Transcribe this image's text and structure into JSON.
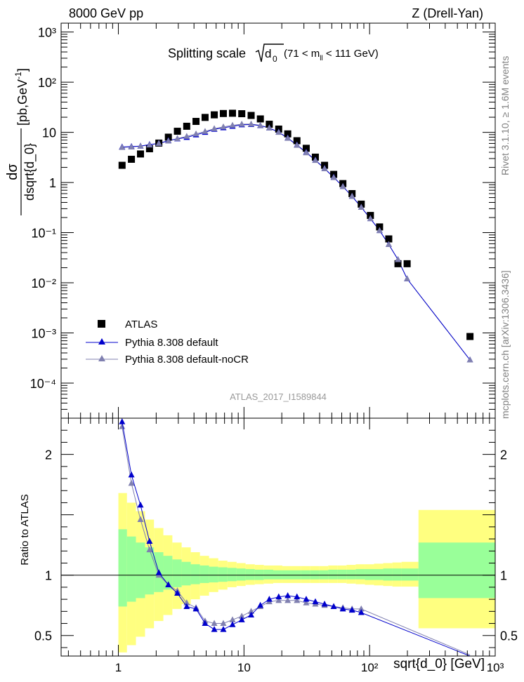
{
  "header": {
    "energy_label": "8000 GeV pp",
    "process_label": "Z (Drell-Yan)"
  },
  "side": {
    "rivet_label": "Rivet 3.1.10, ≥ 1.6M events",
    "mcplots_label": "mcplots.cern.ch [arXiv:1306.3436]"
  },
  "chart_data": [
    {
      "type": "scatter",
      "panel": "main",
      "title": "Splitting scale",
      "title_math": "√d₀",
      "title_cut": "(71 < m_ll < 111 GeV)",
      "ylabel": "dσ/dsqrt{d_0} [pb,GeV⁻¹]",
      "watermark": "ATLAS_2017_I1589844",
      "xscale": "log",
      "yscale": "log",
      "xlim": [
        0.35,
        1000
      ],
      "ylim": [
        2e-05,
        1500
      ],
      "y_ticks": [
        "10⁻⁴",
        "10⁻³",
        "10⁻²",
        "10⁻¹",
        "1",
        "10",
        "10²",
        "10³"
      ],
      "legend_position": "bottom-left",
      "series": [
        {
          "name": "ATLAS",
          "color": "#000000",
          "marker": "square",
          "x": [
            1.07,
            1.27,
            1.5,
            1.77,
            2.1,
            2.5,
            2.95,
            3.5,
            4.15,
            4.9,
            5.8,
            6.85,
            8.1,
            9.6,
            11.4,
            13.5,
            15.9,
            18.9,
            22.3,
            26.4,
            31.3,
            37.0,
            43.8,
            51.8,
            61.3,
            72.5,
            85.8,
            101.5,
            120.1,
            142.1,
            168.2,
            199.0,
            630.0
          ],
          "y": [
            2.2,
            2.9,
            3.7,
            4.7,
            6.1,
            8.0,
            10.5,
            13.2,
            16.5,
            19.8,
            22.3,
            23.7,
            24.0,
            23.5,
            21.7,
            18.5,
            14.5,
            11.6,
            9.3,
            6.8,
            4.8,
            3.2,
            2.2,
            1.45,
            0.95,
            0.6,
            0.37,
            0.22,
            0.13,
            0.075,
            0.024,
            0.024,
            0.00085
          ]
        },
        {
          "name": "Pythia 8.308 default",
          "color": "#0000cc",
          "marker": "triangle",
          "x": [
            1.07,
            1.27,
            1.5,
            1.77,
            2.1,
            2.5,
            2.95,
            3.5,
            4.15,
            4.9,
            5.8,
            6.85,
            8.1,
            9.6,
            11.4,
            13.5,
            15.9,
            18.9,
            22.3,
            26.4,
            31.3,
            37.0,
            43.8,
            51.8,
            61.3,
            72.5,
            85.8,
            101.5,
            120.1,
            142.1,
            168.2,
            199.0,
            630.0
          ],
          "y": [
            5.1,
            5.2,
            5.3,
            5.7,
            6.0,
            6.8,
            7.4,
            7.9,
            8.9,
            10.0,
            11.5,
            12.3,
            13.2,
            14.1,
            14.3,
            13.6,
            12.2,
            10.1,
            7.7,
            5.6,
            4.0,
            2.8,
            1.9,
            1.27,
            0.83,
            0.53,
            0.32,
            0.19,
            0.11,
            0.058,
            0.029,
            0.012,
            0.00029
          ]
        },
        {
          "name": "Pythia 8.308 default-noCR",
          "color": "#8080b0",
          "marker": "triangle",
          "x": [
            1.07,
            1.27,
            1.5,
            1.77,
            2.1,
            2.5,
            2.95,
            3.5,
            4.15,
            4.9,
            5.8,
            6.85,
            8.1,
            9.6,
            11.4,
            13.5,
            15.9,
            18.9,
            22.3,
            26.4,
            31.3,
            37.0,
            43.8,
            51.8,
            61.3,
            72.5,
            85.8,
            101.5,
            120.1,
            142.1,
            168.2,
            199.0,
            630.0
          ],
          "y": [
            5.0,
            5.1,
            5.3,
            5.6,
            6.0,
            6.7,
            7.5,
            8.3,
            9.3,
            10.4,
            11.8,
            12.8,
            13.8,
            14.5,
            14.6,
            13.8,
            12.2,
            10.0,
            7.6,
            5.5,
            3.9,
            2.75,
            1.88,
            1.25,
            0.83,
            0.53,
            0.32,
            0.19,
            0.11,
            0.058,
            0.029,
            0.012,
            0.00029
          ]
        }
      ]
    },
    {
      "type": "line",
      "panel": "ratio",
      "ylabel": "Ratio to ATLAS",
      "xlabel": "sqrt{d_0} [GeV]",
      "xscale": "log",
      "xlim": [
        0.35,
        1000
      ],
      "ylim": [
        0.33,
        2.3
      ],
      "y_ticks": [
        0.5,
        1,
        2
      ],
      "x_ticks": [
        "1",
        "10",
        "10²",
        "10³"
      ],
      "band_edges": [
        1.0,
        1.17,
        1.38,
        1.63,
        1.92,
        2.28,
        2.69,
        3.19,
        3.77,
        4.46,
        5.27,
        6.24,
        7.38,
        8.73,
        10.3,
        12.2,
        14.4,
        17.1,
        20.2,
        23.9,
        28.3,
        33.5,
        39.6,
        46.8,
        55.4,
        65.5,
        77.5,
        91.7,
        108.5,
        128.3,
        151.8,
        179.6,
        245.0,
        1000.0
      ],
      "band_inner_lo": [
        0.74,
        0.78,
        0.81,
        0.84,
        0.86,
        0.88,
        0.9,
        0.915,
        0.925,
        0.935,
        0.94,
        0.945,
        0.95,
        0.955,
        0.96,
        0.96,
        0.965,
        0.965,
        0.965,
        0.965,
        0.965,
        0.965,
        0.965,
        0.965,
        0.965,
        0.965,
        0.965,
        0.96,
        0.96,
        0.955,
        0.955,
        0.955,
        0.81
      ],
      "band_inner_hi": [
        1.38,
        1.32,
        1.27,
        1.23,
        1.19,
        1.16,
        1.13,
        1.11,
        1.09,
        1.08,
        1.07,
        1.065,
        1.06,
        1.055,
        1.05,
        1.045,
        1.045,
        1.04,
        1.04,
        1.04,
        1.04,
        1.04,
        1.04,
        1.045,
        1.045,
        1.045,
        1.05,
        1.05,
        1.05,
        1.055,
        1.055,
        1.055,
        1.27
      ],
      "band_outer_lo": [
        0.36,
        0.42,
        0.49,
        0.56,
        0.62,
        0.67,
        0.72,
        0.76,
        0.8,
        0.83,
        0.86,
        0.88,
        0.9,
        0.91,
        0.92,
        0.925,
        0.93,
        0.935,
        0.935,
        0.935,
        0.935,
        0.935,
        0.935,
        0.935,
        0.935,
        0.93,
        0.925,
        0.92,
        0.915,
        0.91,
        0.905,
        0.905,
        0.56
      ],
      "band_outer_hi": [
        1.68,
        1.6,
        1.53,
        1.46,
        1.39,
        1.33,
        1.27,
        1.23,
        1.19,
        1.16,
        1.14,
        1.12,
        1.11,
        1.1,
        1.09,
        1.085,
        1.08,
        1.08,
        1.075,
        1.075,
        1.075,
        1.075,
        1.075,
        1.08,
        1.08,
        1.085,
        1.09,
        1.09,
        1.095,
        1.1,
        1.105,
        1.11,
        1.54
      ],
      "band_colors": {
        "outer": "#ffff80",
        "inner": "#99ff99"
      },
      "series": [
        {
          "name": "Pythia 8.308 default",
          "color": "#0000cc",
          "x": [
            1.07,
            1.27,
            1.5,
            1.77,
            2.1,
            2.5,
            2.95,
            3.5,
            4.15,
            4.9,
            5.8,
            6.85,
            8.1,
            9.6,
            11.4,
            13.5,
            15.9,
            18.9,
            22.3,
            26.4,
            31.3,
            37.0,
            43.8,
            51.8,
            61.3,
            72.5,
            85.8,
            630.0
          ],
          "y": [
            2.27,
            1.83,
            1.58,
            1.28,
            1.02,
            0.92,
            0.85,
            0.74,
            0.72,
            0.6,
            0.55,
            0.55,
            0.59,
            0.63,
            0.67,
            0.75,
            0.8,
            0.82,
            0.83,
            0.82,
            0.8,
            0.78,
            0.76,
            0.74,
            0.72,
            0.71,
            0.69,
            0.33
          ]
        },
        {
          "name": "Pythia 8.308 default-noCR",
          "color": "#8080b0",
          "x": [
            1.07,
            1.27,
            1.5,
            1.77,
            2.1,
            2.5,
            2.95,
            3.5,
            4.15,
            4.9,
            5.8,
            6.85,
            8.1,
            9.6,
            11.4,
            13.5,
            15.9,
            18.9,
            22.3,
            26.4,
            31.3,
            37.0,
            43.8,
            51.8,
            61.3,
            72.5,
            85.8,
            630.0
          ],
          "y": [
            2.23,
            1.76,
            1.46,
            1.21,
            1.0,
            0.92,
            0.87,
            0.77,
            0.73,
            0.62,
            0.6,
            0.6,
            0.63,
            0.66,
            0.7,
            0.74,
            0.78,
            0.79,
            0.79,
            0.79,
            0.77,
            0.76,
            0.75,
            0.74,
            0.73,
            0.72,
            0.72,
            0.34
          ]
        }
      ]
    }
  ]
}
